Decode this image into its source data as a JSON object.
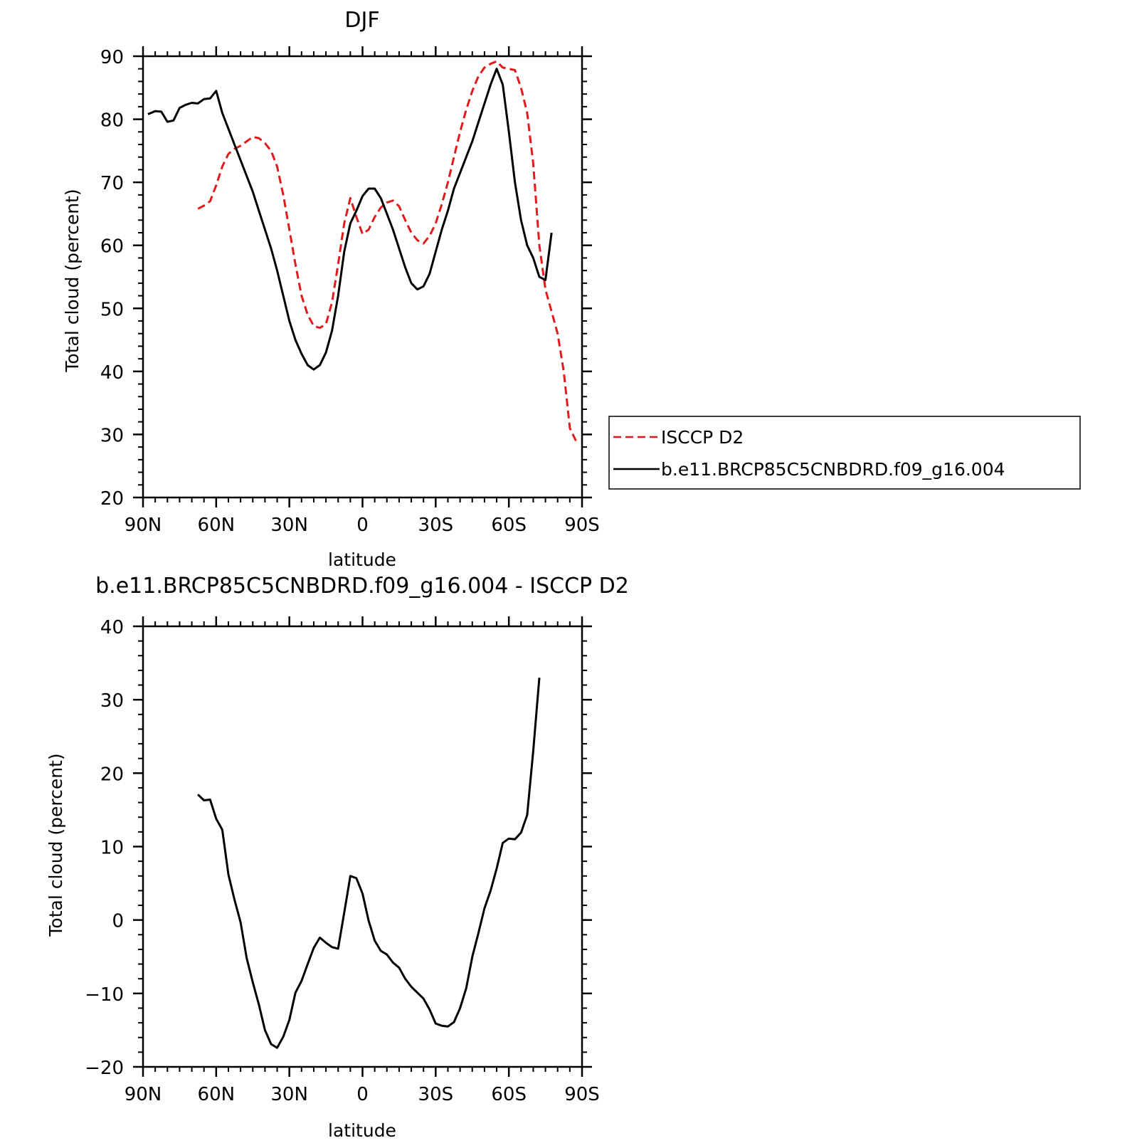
{
  "colors": {
    "isccp": "#e31a1c",
    "model": "#000000",
    "frame": "#000000",
    "background": "#ffffff"
  },
  "chart_data": [
    {
      "type": "line",
      "title": "DJF",
      "xlabel": "latitude",
      "ylabel": "Total cloud (percent)",
      "xlim": [
        90,
        -90
      ],
      "ylim": [
        20,
        90
      ],
      "x_ticks": [
        {
          "value": 90,
          "label": "90N"
        },
        {
          "value": 60,
          "label": "60N"
        },
        {
          "value": 30,
          "label": "30N"
        },
        {
          "value": 0,
          "label": "0"
        },
        {
          "value": -30,
          "label": "30S"
        },
        {
          "value": -60,
          "label": "60S"
        },
        {
          "value": -90,
          "label": "90S"
        }
      ],
      "y_ticks": [
        {
          "value": 20,
          "label": "20"
        },
        {
          "value": 30,
          "label": "30"
        },
        {
          "value": 40,
          "label": "40"
        },
        {
          "value": 50,
          "label": "50"
        },
        {
          "value": 60,
          "label": "60"
        },
        {
          "value": 70,
          "label": "70"
        },
        {
          "value": 80,
          "label": "80"
        },
        {
          "value": 90,
          "label": "90"
        }
      ],
      "legend": {
        "position": "right"
      },
      "series": [
        {
          "name": "ISCCP D2",
          "color": "#e31a1c",
          "style": "dashed",
          "points": [
            [
              67.5,
              65.8
            ],
            [
              65,
              66.3
            ],
            [
              62.5,
              67.0
            ],
            [
              60,
              69.5
            ],
            [
              57.5,
              72.5
            ],
            [
              55,
              74.5
            ],
            [
              52.5,
              75.3
            ],
            [
              50,
              75.8
            ],
            [
              47.5,
              76.5
            ],
            [
              45,
              77.2
            ],
            [
              42.5,
              77.0
            ],
            [
              40,
              76.2
            ],
            [
              37.5,
              75.0
            ],
            [
              35,
              72.5
            ],
            [
              32.5,
              68.0
            ],
            [
              30,
              62.5
            ],
            [
              27.5,
              57.0
            ],
            [
              25,
              52.0
            ],
            [
              22.5,
              49.0
            ],
            [
              20,
              47.2
            ],
            [
              17.5,
              46.9
            ],
            [
              15,
              47.5
            ],
            [
              12.5,
              51.0
            ],
            [
              10,
              57.0
            ],
            [
              7.5,
              63.5
            ],
            [
              5,
              67.5
            ],
            [
              2.5,
              64.5
            ],
            [
              0,
              61.8
            ],
            [
              -2.5,
              62.5
            ],
            [
              -5,
              64.5
            ],
            [
              -7.5,
              66.0
            ],
            [
              -10,
              66.8
            ],
            [
              -12.5,
              67.1
            ],
            [
              -15,
              66.2
            ],
            [
              -17.5,
              64.0
            ],
            [
              -20,
              62.0
            ],
            [
              -22.5,
              60.8
            ],
            [
              -25,
              60.3
            ],
            [
              -27.5,
              61.5
            ],
            [
              -30,
              63.5
            ],
            [
              -32.5,
              66.5
            ],
            [
              -35,
              70.0
            ],
            [
              -37.5,
              74.0
            ],
            [
              -40,
              78.0
            ],
            [
              -42.5,
              81.5
            ],
            [
              -45,
              84.5
            ],
            [
              -47.5,
              86.8
            ],
            [
              -50,
              88.2
            ],
            [
              -52.5,
              88.8
            ],
            [
              -55,
              89.2
            ],
            [
              -57.5,
              88.2
            ],
            [
              -60,
              88.0
            ],
            [
              -62.5,
              87.8
            ],
            [
              -65,
              85.0
            ],
            [
              -67.5,
              81.0
            ],
            [
              -70,
              73.0
            ],
            [
              -72.5,
              60.0
            ],
            [
              -75,
              53.0
            ],
            [
              -77.5,
              49.5
            ],
            [
              -80,
              46.0
            ],
            [
              -82.5,
              40.0
            ],
            [
              -85,
              31.0
            ],
            [
              -87.5,
              29.0
            ]
          ]
        },
        {
          "name": "b.e11.BRCP85C5CNBDRD.f09_g16.004",
          "color": "#000000",
          "style": "solid",
          "points": [
            [
              88,
              80.8
            ],
            [
              85,
              81.3
            ],
            [
              82.5,
              81.2
            ],
            [
              80,
              79.6
            ],
            [
              77.5,
              79.8
            ],
            [
              75,
              81.8
            ],
            [
              72.5,
              82.3
            ],
            [
              70,
              82.6
            ],
            [
              67.5,
              82.5
            ],
            [
              65,
              83.2
            ],
            [
              62.5,
              83.3
            ],
            [
              60,
              84.5
            ],
            [
              57.5,
              81.0
            ],
            [
              55,
              78.5
            ],
            [
              52.5,
              76.0
            ],
            [
              50,
              73.5
            ],
            [
              47.5,
              71.0
            ],
            [
              45,
              68.5
            ],
            [
              42.5,
              65.5
            ],
            [
              40,
              62.5
            ],
            [
              37.5,
              59.5
            ],
            [
              35,
              56.0
            ],
            [
              32.5,
              52.0
            ],
            [
              30,
              48.0
            ],
            [
              27.5,
              45.0
            ],
            [
              25,
              42.8
            ],
            [
              22.5,
              41.0
            ],
            [
              20,
              40.3
            ],
            [
              17.5,
              41.0
            ],
            [
              15,
              43.0
            ],
            [
              12.5,
              46.5
            ],
            [
              10,
              52.0
            ],
            [
              7.5,
              59.0
            ],
            [
              5,
              63.5
            ],
            [
              2.5,
              65.5
            ],
            [
              0,
              67.8
            ],
            [
              -2.5,
              69.0
            ],
            [
              -5,
              69.0
            ],
            [
              -7.5,
              67.5
            ],
            [
              -10,
              65.0
            ],
            [
              -12.5,
              62.5
            ],
            [
              -15,
              59.5
            ],
            [
              -17.5,
              56.5
            ],
            [
              -20,
              54.0
            ],
            [
              -22.5,
              53.0
            ],
            [
              -25,
              53.5
            ],
            [
              -27.5,
              55.5
            ],
            [
              -30,
              59.0
            ],
            [
              -32.5,
              62.5
            ],
            [
              -35,
              65.5
            ],
            [
              -37.5,
              69.0
            ],
            [
              -40,
              71.5
            ],
            [
              -42.5,
              74.0
            ],
            [
              -45,
              76.5
            ],
            [
              -47.5,
              79.5
            ],
            [
              -50,
              82.5
            ],
            [
              -52.5,
              85.5
            ],
            [
              -55,
              88.0
            ],
            [
              -57.5,
              85.5
            ],
            [
              -60,
              78.0
            ],
            [
              -62.5,
              70.0
            ],
            [
              -65,
              64.0
            ],
            [
              -67.5,
              60.0
            ],
            [
              -70,
              58.0
            ],
            [
              -72.5,
              55.0
            ],
            [
              -75,
              54.5
            ],
            [
              -77.5,
              62.0
            ]
          ]
        }
      ]
    },
    {
      "type": "line",
      "title": "b.e11.BRCP85C5CNBDRD.f09_g16.004 - ISCCP D2",
      "xlabel": "latitude",
      "ylabel": "Total cloud (percent)",
      "xlim": [
        90,
        -90
      ],
      "ylim": [
        -20,
        40
      ],
      "x_ticks": [
        {
          "value": 90,
          "label": "90N"
        },
        {
          "value": 60,
          "label": "60N"
        },
        {
          "value": 30,
          "label": "30N"
        },
        {
          "value": 0,
          "label": "0"
        },
        {
          "value": -30,
          "label": "30S"
        },
        {
          "value": -60,
          "label": "60S"
        },
        {
          "value": -90,
          "label": "90S"
        }
      ],
      "y_ticks": [
        {
          "value": -20,
          "label": "−20"
        },
        {
          "value": -10,
          "label": "−10"
        },
        {
          "value": 0,
          "label": "0"
        },
        {
          "value": 10,
          "label": "10"
        },
        {
          "value": 20,
          "label": "20"
        },
        {
          "value": 30,
          "label": "30"
        },
        {
          "value": 40,
          "label": "40"
        }
      ],
      "series": [
        {
          "color": "#000000",
          "style": "solid",
          "points": [
            [
              67.5,
              17.1
            ],
            [
              65,
              16.3
            ],
            [
              62.5,
              16.4
            ],
            [
              60,
              13.8
            ],
            [
              57.5,
              12.3
            ],
            [
              55,
              6.2
            ],
            [
              52.5,
              2.8
            ],
            [
              50,
              -0.3
            ],
            [
              47.5,
              -5.2
            ],
            [
              45,
              -8.5
            ],
            [
              42.5,
              -11.5
            ],
            [
              40,
              -15.0
            ],
            [
              37.5,
              -16.9
            ],
            [
              35,
              -17.4
            ],
            [
              32.5,
              -15.9
            ],
            [
              30,
              -13.6
            ],
            [
              27.5,
              -9.9
            ],
            [
              25,
              -8.3
            ],
            [
              22.5,
              -6.0
            ],
            [
              20,
              -3.8
            ],
            [
              17.5,
              -2.4
            ],
            [
              15,
              -3.1
            ],
            [
              12.5,
              -3.7
            ],
            [
              10,
              -3.9
            ],
            [
              7.5,
              1.0
            ],
            [
              5,
              6.0
            ],
            [
              2.5,
              5.7
            ],
            [
              0,
              3.6
            ],
            [
              -2.5,
              -0.1
            ],
            [
              -5,
              -2.8
            ],
            [
              -7.5,
              -4.2
            ],
            [
              -10,
              -4.7
            ],
            [
              -12.5,
              -5.8
            ],
            [
              -15,
              -6.5
            ],
            [
              -17.5,
              -8.0
            ],
            [
              -20,
              -9.1
            ],
            [
              -22.5,
              -9.9
            ],
            [
              -25,
              -10.7
            ],
            [
              -27.5,
              -12.2
            ],
            [
              -30,
              -14.1
            ],
            [
              -32.5,
              -14.4
            ],
            [
              -35,
              -14.5
            ],
            [
              -37.5,
              -13.9
            ],
            [
              -40,
              -12.0
            ],
            [
              -42.5,
              -9.3
            ],
            [
              -45,
              -5.0
            ],
            [
              -47.5,
              -1.8
            ],
            [
              -50,
              1.6
            ],
            [
              -52.5,
              4.0
            ],
            [
              -55,
              7.0
            ],
            [
              -57.5,
              10.5
            ],
            [
              -60,
              11.1
            ],
            [
              -62.5,
              11.0
            ],
            [
              -65,
              11.9
            ],
            [
              -67.5,
              14.3
            ],
            [
              -70,
              23.0
            ],
            [
              -72.5,
              33.0
            ]
          ]
        }
      ]
    }
  ]
}
